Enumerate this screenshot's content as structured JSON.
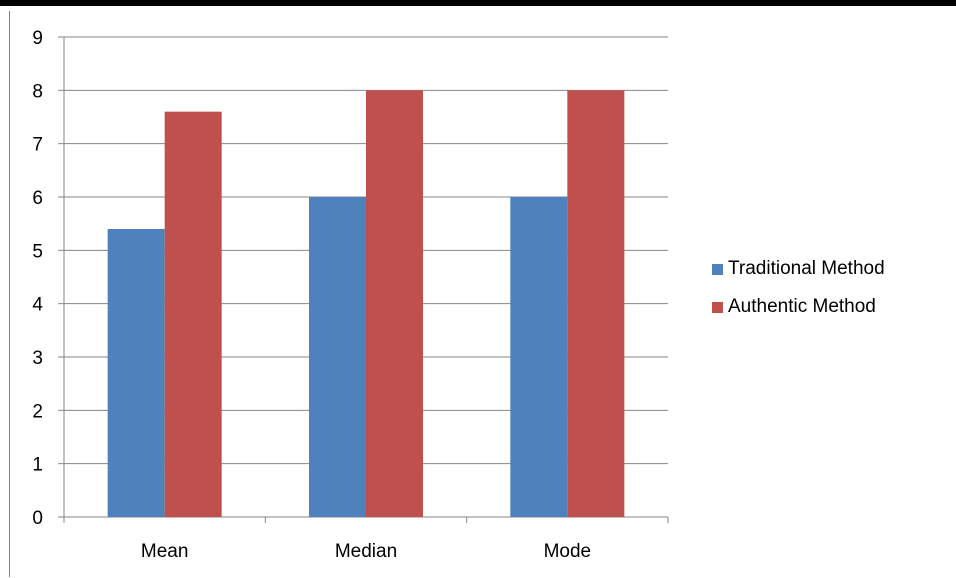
{
  "chart_data": {
    "type": "bar",
    "categories": [
      "Mean",
      "Median",
      "Mode"
    ],
    "series": [
      {
        "name": "Traditional Method",
        "values": [
          5.4,
          6,
          6
        ],
        "color": "#4F81BD"
      },
      {
        "name": "Authentic Method",
        "values": [
          7.6,
          8,
          8
        ],
        "color": "#C0504D"
      }
    ],
    "ylim": [
      0,
      9
    ],
    "yticks": [
      "0",
      "1",
      "2",
      "3",
      "4",
      "5",
      "6",
      "7",
      "8",
      "9"
    ],
    "grid": true,
    "legend_position": "right"
  }
}
